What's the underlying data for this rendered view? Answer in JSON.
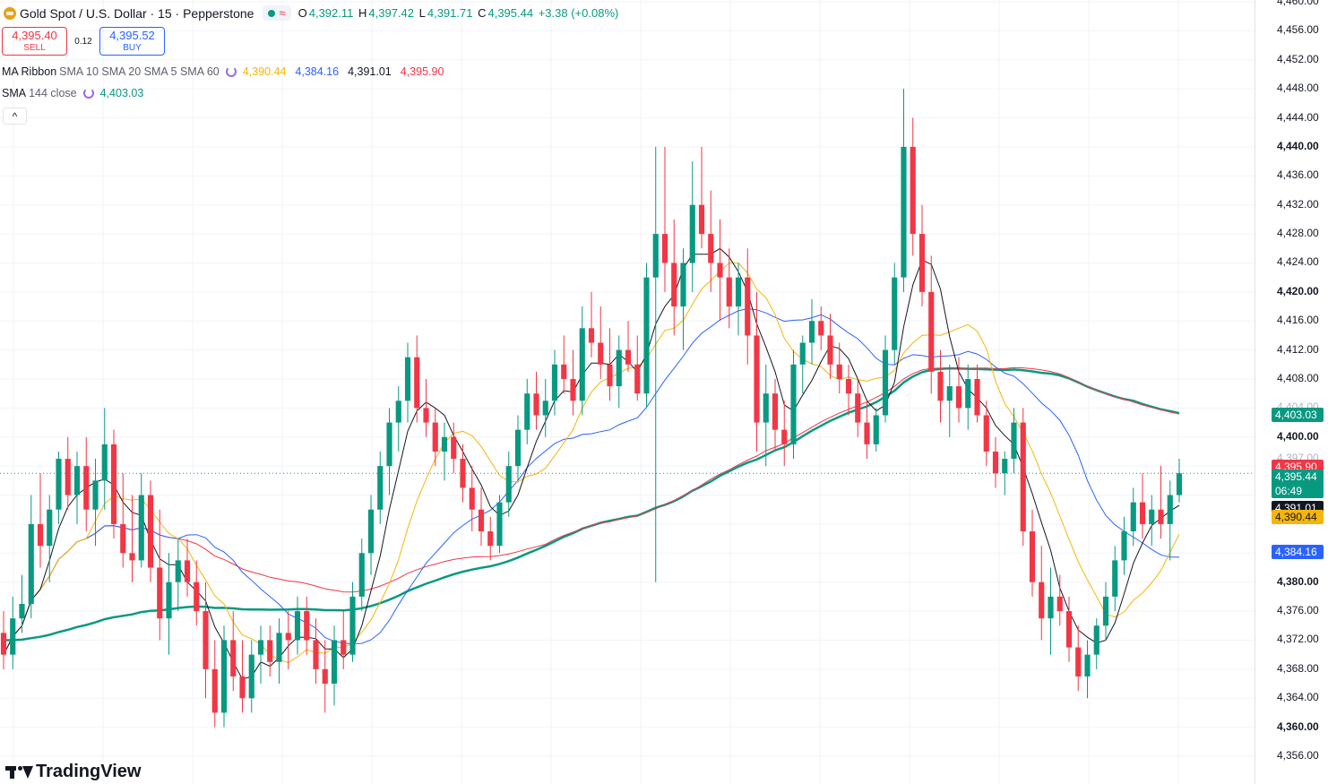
{
  "header": {
    "symbol": "Gold Spot / U.S. Dollar · 15 · Pepperstone",
    "open_label": "O",
    "open": "4,392.11",
    "high_label": "H",
    "high": "4,397.42",
    "low_label": "L",
    "low": "4,391.71",
    "close_label": "C",
    "close": "4,395.44",
    "change": "+3.38 (+0.08%)"
  },
  "trade": {
    "sell_price": "4,395.40",
    "sell_label": "SELL",
    "spread": "0.12",
    "buy_price": "4,395.52",
    "buy_label": "BUY"
  },
  "indicators": {
    "ma_ribbon": {
      "name": "MA Ribbon",
      "params": "SMA 10 SMA 20 SMA 5 SMA 60",
      "v1": "4,390.44",
      "v2": "4,384.16",
      "v3": "4,391.01",
      "v4": "4,395.90"
    },
    "sma144": {
      "name": "SMA",
      "params": "144 close",
      "value": "4,403.03"
    }
  },
  "collapse_glyph": "^",
  "branding": {
    "logo_text": "TradingView"
  },
  "price_axis": {
    "ticks": [
      "4,460.00",
      "4,456.00",
      "4,452.00",
      "4,448.00",
      "4,444.00",
      "4,440.00",
      "4,436.00",
      "4,432.00",
      "4,428.00",
      "4,424.00",
      "4,420.00",
      "4,416.00",
      "4,412.00",
      "4,408.00",
      "4,404.00",
      "4,400.00",
      "4,397.00",
      "4,380.00",
      "4,376.00",
      "4,372.00",
      "4,368.00",
      "4,364.00",
      "4,360.00",
      "4,356.00"
    ],
    "labels": {
      "sma144": "4,403.03",
      "sma60": "4,395.90",
      "last": "4,395.44",
      "countdown": "06:49",
      "sma5": "4,391.01",
      "sma10": "4,390.44",
      "sma20": "4,384.16"
    }
  },
  "colors": {
    "up": "#089981",
    "down": "#f23645",
    "sma5": "#131722",
    "sma10": "#f5b50b",
    "sma20": "#2962ff",
    "sma60": "#f23645",
    "sma144": "#089981"
  },
  "chart_data": {
    "type": "candlestick",
    "symbol": "Gold Spot / U.S. Dollar",
    "timeframe": "15",
    "ylim": [
      4355,
      4461
    ],
    "yticks": [
      4356,
      4360,
      4364,
      4368,
      4372,
      4376,
      4380,
      4384,
      4388,
      4392,
      4396,
      4400,
      4404,
      4408,
      4412,
      4416,
      4420,
      4424,
      4428,
      4432,
      4436,
      4440,
      4444,
      4448,
      4452,
      4456,
      4460
    ],
    "candles": [
      [
        4373,
        4376,
        4368,
        4370
      ],
      [
        4370,
        4378,
        4368,
        4375
      ],
      [
        4375,
        4381,
        4373,
        4377
      ],
      [
        4377,
        4392,
        4375,
        4388
      ],
      [
        4388,
        4395,
        4382,
        4385
      ],
      [
        4385,
        4392,
        4380,
        4390
      ],
      [
        4390,
        4398,
        4388,
        4397
      ],
      [
        4397,
        4400,
        4390,
        4392
      ],
      [
        4392,
        4398,
        4388,
        4396
      ],
      [
        4396,
        4400,
        4387,
        4390
      ],
      [
        4390,
        4397,
        4385,
        4394
      ],
      [
        4394,
        4404,
        4390,
        4399
      ],
      [
        4399,
        4401,
        4386,
        4388
      ],
      [
        4388,
        4395,
        4382,
        4384
      ],
      [
        4384,
        4392,
        4380,
        4383
      ],
      [
        4383,
        4395,
        4382,
        4392
      ],
      [
        4392,
        4394,
        4380,
        4382
      ],
      [
        4382,
        4390,
        4372,
        4375
      ],
      [
        4375,
        4384,
        4370,
        4380
      ],
      [
        4380,
        4386,
        4376,
        4383
      ],
      [
        4383,
        4386,
        4378,
        4380
      ],
      [
        4380,
        4383,
        4374,
        4376
      ],
      [
        4376,
        4380,
        4364,
        4368
      ],
      [
        4368,
        4372,
        4360,
        4362
      ],
      [
        4362,
        4374,
        4360,
        4372
      ],
      [
        4372,
        4376,
        4365,
        4367
      ],
      [
        4367,
        4372,
        4362,
        4364
      ],
      [
        4364,
        4372,
        4362,
        4370
      ],
      [
        4370,
        4374,
        4366,
        4372
      ],
      [
        4372,
        4374,
        4367,
        4369
      ],
      [
        4369,
        4375,
        4366,
        4373
      ],
      [
        4373,
        4376,
        4368,
        4372
      ],
      [
        4372,
        4378,
        4370,
        4376
      ],
      [
        4376,
        4378,
        4370,
        4372
      ],
      [
        4372,
        4375,
        4366,
        4368
      ],
      [
        4368,
        4372,
        4362,
        4366
      ],
      [
        4366,
        4374,
        4363,
        4372
      ],
      [
        4372,
        4376,
        4368,
        4370
      ],
      [
        4370,
        4380,
        4369,
        4378
      ],
      [
        4378,
        4386,
        4376,
        4384
      ],
      [
        4384,
        4392,
        4381,
        4390
      ],
      [
        4390,
        4398,
        4388,
        4396
      ],
      [
        4396,
        4404,
        4392,
        4402
      ],
      [
        4402,
        4407,
        4398,
        4405
      ],
      [
        4405,
        4413,
        4402,
        4411
      ],
      [
        4411,
        4414,
        4402,
        4404
      ],
      [
        4404,
        4408,
        4400,
        4402
      ],
      [
        4402,
        4404,
        4396,
        4398
      ],
      [
        4398,
        4402,
        4394,
        4400
      ],
      [
        4400,
        4402,
        4395,
        4397
      ],
      [
        4397,
        4399,
        4391,
        4393
      ],
      [
        4393,
        4396,
        4387,
        4390
      ],
      [
        4390,
        4393,
        4385,
        4387
      ],
      [
        4387,
        4389,
        4383,
        4385
      ],
      [
        4385,
        4392,
        4384,
        4391
      ],
      [
        4391,
        4398,
        4389,
        4396
      ],
      [
        4396,
        4403,
        4394,
        4401
      ],
      [
        4401,
        4408,
        4399,
        4406
      ],
      [
        4406,
        4409,
        4401,
        4403
      ],
      [
        4403,
        4408,
        4400,
        4405
      ],
      [
        4405,
        4412,
        4403,
        4410
      ],
      [
        4410,
        4414,
        4406,
        4408
      ],
      [
        4408,
        4412,
        4403,
        4405
      ],
      [
        4405,
        4418,
        4403,
        4415
      ],
      [
        4415,
        4420,
        4411,
        4413
      ],
      [
        4413,
        4418,
        4408,
        4410
      ],
      [
        4410,
        4415,
        4405,
        4407
      ],
      [
        4407,
        4414,
        4404,
        4412
      ],
      [
        4412,
        4416,
        4409,
        4410
      ],
      [
        4410,
        4414,
        4405,
        4406
      ],
      [
        4406,
        4424,
        4404,
        4422
      ],
      [
        4422,
        4440,
        4380,
        4428
      ],
      [
        4428,
        4440,
        4420,
        4424
      ],
      [
        4424,
        4430,
        4414,
        4418
      ],
      [
        4418,
        4426,
        4412,
        4424
      ],
      [
        4424,
        4438,
        4420,
        4432
      ],
      [
        4432,
        4440,
        4426,
        4428
      ],
      [
        4428,
        4434,
        4420,
        4424
      ],
      [
        4424,
        4430,
        4416,
        4422
      ],
      [
        4422,
        4426,
        4415,
        4418
      ],
      [
        4418,
        4424,
        4414,
        4422
      ],
      [
        4422,
        4426,
        4410,
        4414
      ],
      [
        4414,
        4420,
        4398,
        4402
      ],
      [
        4402,
        4410,
        4396,
        4406
      ],
      [
        4406,
        4408,
        4398,
        4401
      ],
      [
        4401,
        4405,
        4396,
        4399
      ],
      [
        4399,
        4412,
        4397,
        4410
      ],
      [
        4410,
        4414,
        4406,
        4413
      ],
      [
        4413,
        4419,
        4410,
        4416
      ],
      [
        4416,
        4418,
        4412,
        4414
      ],
      [
        4414,
        4417,
        4408,
        4410
      ],
      [
        4410,
        4413,
        4406,
        4408
      ],
      [
        4408,
        4410,
        4403,
        4406
      ],
      [
        4406,
        4408,
        4400,
        4402
      ],
      [
        4402,
        4405,
        4397,
        4399
      ],
      [
        4399,
        4404,
        4398,
        4403
      ],
      [
        4403,
        4414,
        4402,
        4412
      ],
      [
        4412,
        4424,
        4410,
        4422
      ],
      [
        4422,
        4448,
        4420,
        4440
      ],
      [
        4440,
        4444,
        4425,
        4428
      ],
      [
        4428,
        4432,
        4418,
        4420
      ],
      [
        4420,
        4425,
        4406,
        4409
      ],
      [
        4409,
        4412,
        4402,
        4405
      ],
      [
        4405,
        4410,
        4400,
        4407
      ],
      [
        4407,
        4411,
        4402,
        4404
      ],
      [
        4404,
        4410,
        4401,
        4408
      ],
      [
        4408,
        4410,
        4402,
        4403
      ],
      [
        4403,
        4405,
        4396,
        4398
      ],
      [
        4398,
        4400,
        4393,
        4395
      ],
      [
        4395,
        4398,
        4392,
        4397
      ],
      [
        4397,
        4404,
        4395,
        4402
      ],
      [
        4402,
        4404,
        4385,
        4387
      ],
      [
        4387,
        4390,
        4378,
        4380
      ],
      [
        4380,
        4385,
        4372,
        4375
      ],
      [
        4375,
        4382,
        4370,
        4378
      ],
      [
        4378,
        4381,
        4374,
        4376
      ],
      [
        4376,
        4378,
        4369,
        4371
      ],
      [
        4371,
        4374,
        4365,
        4367
      ],
      [
        4367,
        4372,
        4364,
        4370
      ],
      [
        4370,
        4375,
        4368,
        4374
      ],
      [
        4374,
        4380,
        4372,
        4378
      ],
      [
        4378,
        4385,
        4376,
        4383
      ],
      [
        4383,
        4389,
        4381,
        4387
      ],
      [
        4387,
        4393,
        4385,
        4391
      ],
      [
        4391,
        4395,
        4386,
        4388
      ],
      [
        4388,
        4392,
        4385,
        4390
      ],
      [
        4390,
        4396,
        4386,
        4388
      ],
      [
        4388,
        4394,
        4383,
        4392
      ],
      [
        4392,
        4397,
        4391,
        4395
      ]
    ],
    "indicators": [
      "MA Ribbon (SMA 5, SMA 10, SMA 20, SMA 60)",
      "SMA 144 close"
    ]
  }
}
